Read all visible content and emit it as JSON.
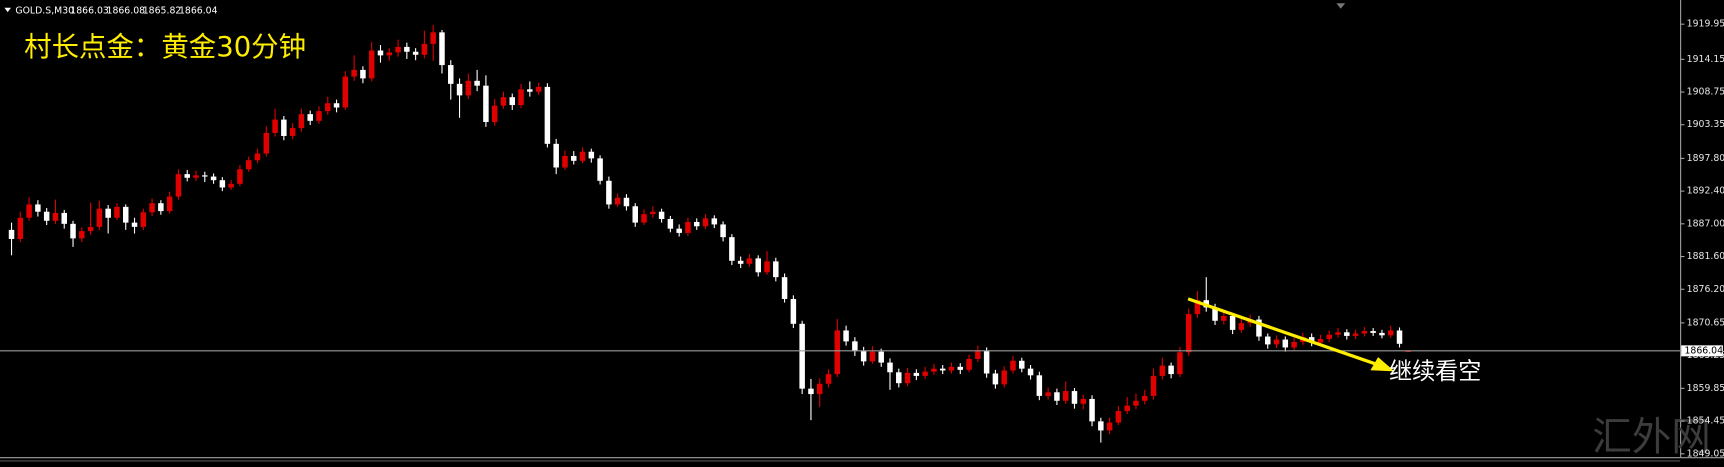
{
  "chart_data": {
    "type": "candlestick",
    "title": "GOLD.S,M30",
    "annotations": [
      "村长点金：黄金30分钟",
      "继续看空"
    ],
    "watermark": "汇外网",
    "colors": {
      "up": "#e00000",
      "down": "#ffffff",
      "background": "#000000",
      "price_line": "#9a9a9a",
      "axis": "#a0a0a0",
      "trend": "#ffee00"
    },
    "grid": false,
    "ylim": [
      1848.5,
      1921.4
    ],
    "yticks": [
      1919.95,
      1914.15,
      1908.75,
      1903.35,
      {
        "value": 1897.8,
        "label": "1897.80"
      },
      {
        "value": 1892.4,
        "label": "1892.40"
      },
      {
        "value": 1887,
        "label": "1887.00"
      },
      {
        "value": 1881.6,
        "label": "1881.60"
      },
      {
        "value": 1876.2,
        "label": "1876.20"
      },
      1870.65,
      1865.25,
      1859.85,
      1854.45,
      1849.05
    ],
    "open": [
      1886.0,
      1884.5,
      1888.0,
      1890.2,
      1889.0,
      1887.5,
      1888.8,
      1887.0,
      1884.6,
      1885.8,
      1886.5,
      1889.5,
      1888.0,
      1889.8,
      1887.2,
      1886.5,
      1888.9,
      1890.4,
      1889.1,
      1891.5,
      1895.2,
      1894.6,
      1895.0,
      1894.8,
      1894.2,
      1893.0,
      1893.6,
      1896.0,
      1897.5,
      1898.6,
      1902.0,
      1904.2,
      1901.5,
      1902.8,
      1905.1,
      1904.0,
      1905.6,
      1906.9,
      1906.2,
      1911.3,
      1912.4,
      1911.0,
      1915.6,
      1914.8,
      1915.3,
      1916.2,
      1915.4,
      1914.9,
      1916.7,
      1918.6,
      1913.2,
      1910.1,
      1908.2,
      1910.6,
      1909.8,
      1903.8,
      1906.5,
      1907.9,
      1906.6,
      1909.2,
      1908.8,
      1909.6,
      1900.2,
      1896.3,
      1898.2,
      1897.4,
      1898.9,
      1897.8,
      1894.1,
      1890.2,
      1891.3,
      1889.9,
      1887.2,
      1888.6,
      1889.0,
      1887.8,
      1886.2,
      1885.5,
      1887.3,
      1886.6,
      1887.9,
      1886.9,
      1884.8,
      1880.9,
      1880.4,
      1881.3,
      1879.0,
      1880.8,
      1878.2,
      1874.6,
      1870.5,
      1859.8,
      1858.9,
      1860.6,
      1862.2,
      1869.4,
      1867.6,
      1866.0,
      1864.3,
      1865.9,
      1864.1,
      1862.5,
      1860.7,
      1862.4,
      1861.9,
      1862.6,
      1863.1,
      1862.8,
      1863.4,
      1862.9,
      1864.7,
      1866.1,
      1862.3,
      1860.5,
      1862.8,
      1864.4,
      1863.1,
      1862.0,
      1858.6,
      1859.2,
      1857.8,
      1859.4,
      1857.3,
      1858.1,
      1854.4,
      1852.9,
      1854.2,
      1856.1,
      1857.0,
      1857.8,
      1858.6,
      1861.9,
      1863.6,
      1862.2,
      1865.8,
      1872.1,
      1874.4,
      1873.2,
      1871.0,
      1871.8,
      1869.5,
      1870.6,
      1871.2,
      1868.4,
      1867.1,
      1867.9,
      1866.6,
      1867.5,
      1868.3,
      1867.4,
      1868.0,
      1868.7,
      1869.1,
      1868.5,
      1868.9,
      1869.3,
      1869.0,
      1868.6,
      1869.4,
      1866.03
    ],
    "high": [
      1887.2,
      1889.0,
      1891.4,
      1890.9,
      1889.6,
      1891.0,
      1889.3,
      1887.5,
      1886.4,
      1890.5,
      1890.8,
      1890.1,
      1890.4,
      1890.2,
      1888.0,
      1889.5,
      1891.2,
      1890.9,
      1892.3,
      1896.0,
      1895.9,
      1895.8,
      1895.6,
      1895.3,
      1894.7,
      1894.2,
      1896.7,
      1898.1,
      1899.4,
      1903.1,
      1906.0,
      1904.8,
      1903.6,
      1906.0,
      1905.7,
      1906.4,
      1908.0,
      1907.5,
      1912.2,
      1914.8,
      1913.0,
      1917.0,
      1916.5,
      1916.0,
      1917.4,
      1916.9,
      1916.0,
      1918.9,
      1919.8,
      1919.0,
      1914.0,
      1911.0,
      1911.8,
      1912.4,
      1911.5,
      1907.6,
      1908.8,
      1908.5,
      1910.1,
      1910.5,
      1910.3,
      1910.2,
      1901.0,
      1899.1,
      1899.0,
      1899.6,
      1899.4,
      1898.3,
      1894.8,
      1892.0,
      1891.9,
      1890.4,
      1889.4,
      1889.9,
      1889.5,
      1888.3,
      1886.9,
      1888.0,
      1887.9,
      1888.6,
      1888.4,
      1887.4,
      1885.3,
      1881.6,
      1882.0,
      1881.8,
      1882.5,
      1881.4,
      1878.8,
      1875.2,
      1871.0,
      1861.4,
      1861.5,
      1863.0,
      1871.3,
      1870.2,
      1868.3,
      1866.7,
      1866.8,
      1866.4,
      1864.8,
      1863.1,
      1863.2,
      1863.0,
      1863.4,
      1863.9,
      1863.7,
      1864.1,
      1864.0,
      1865.4,
      1866.9,
      1866.6,
      1862.9,
      1863.5,
      1865.2,
      1864.9,
      1863.7,
      1862.6,
      1860.0,
      1859.8,
      1861.0,
      1859.9,
      1858.8,
      1858.7,
      1855.0,
      1855.0,
      1856.9,
      1858.4,
      1859.0,
      1859.6,
      1863.1,
      1864.9,
      1864.1,
      1866.7,
      1873.0,
      1875.9,
      1878.2,
      1873.8,
      1872.6,
      1872.3,
      1871.4,
      1872.0,
      1871.8,
      1868.9,
      1868.6,
      1868.4,
      1868.2,
      1869.0,
      1868.9,
      1868.7,
      1869.4,
      1869.8,
      1869.6,
      1869.5,
      1870.0,
      1869.8,
      1869.5,
      1870.2,
      1869.9,
      1866.08
    ],
    "low": [
      1881.8,
      1884.0,
      1887.5,
      1888.2,
      1886.8,
      1887.0,
      1886.2,
      1883.2,
      1884.0,
      1885.2,
      1886.0,
      1885.4,
      1887.6,
      1886.0,
      1885.4,
      1886.0,
      1888.3,
      1888.5,
      1888.7,
      1891.0,
      1894.0,
      1894.1,
      1893.9,
      1893.6,
      1892.4,
      1892.6,
      1893.2,
      1895.6,
      1897.0,
      1898.1,
      1901.4,
      1900.8,
      1901.0,
      1902.2,
      1903.3,
      1903.5,
      1905.0,
      1905.4,
      1905.8,
      1910.6,
      1910.2,
      1910.5,
      1913.6,
      1913.9,
      1914.6,
      1914.2,
      1914.0,
      1914.3,
      1913.9,
      1911.8,
      1907.5,
      1904.5,
      1907.6,
      1908.9,
      1903.0,
      1903.2,
      1906.0,
      1905.8,
      1906.1,
      1908.0,
      1908.3,
      1899.6,
      1895.2,
      1895.9,
      1896.8,
      1897.0,
      1897.1,
      1893.5,
      1889.5,
      1889.8,
      1889.2,
      1886.5,
      1886.8,
      1888.0,
      1887.2,
      1885.6,
      1884.9,
      1885.0,
      1886.0,
      1886.1,
      1886.3,
      1884.1,
      1880.2,
      1879.7,
      1879.9,
      1878.3,
      1878.6,
      1877.5,
      1874.0,
      1869.8,
      1858.9,
      1854.6,
      1856.8,
      1860.0,
      1861.7,
      1866.9,
      1865.2,
      1863.6,
      1863.9,
      1863.4,
      1859.6,
      1860.0,
      1860.2,
      1861.2,
      1861.4,
      1862.1,
      1862.2,
      1862.3,
      1862.2,
      1862.5,
      1864.2,
      1861.6,
      1859.8,
      1860.0,
      1862.3,
      1862.5,
      1861.3,
      1857.9,
      1858.0,
      1857.1,
      1857.3,
      1856.5,
      1856.4,
      1853.6,
      1850.9,
      1852.3,
      1853.8,
      1855.6,
      1856.4,
      1857.2,
      1858.0,
      1861.3,
      1861.5,
      1861.7,
      1865.2,
      1871.5,
      1872.5,
      1870.3,
      1870.4,
      1868.8,
      1869.0,
      1870.0,
      1867.7,
      1866.4,
      1866.5,
      1865.9,
      1866.1,
      1867.0,
      1866.8,
      1866.9,
      1867.5,
      1868.2,
      1867.9,
      1868.0,
      1868.4,
      1868.5,
      1868.1,
      1868.2,
      1866.6,
      1865.82
    ],
    "close": [
      1884.5,
      1888.0,
      1890.2,
      1889.0,
      1887.5,
      1888.8,
      1887.0,
      1884.6,
      1885.8,
      1886.5,
      1889.5,
      1888.0,
      1889.8,
      1887.2,
      1886.5,
      1888.9,
      1890.4,
      1889.1,
      1891.5,
      1895.2,
      1894.6,
      1895.0,
      1894.8,
      1894.2,
      1893.0,
      1893.6,
      1896.0,
      1897.5,
      1898.6,
      1902.0,
      1904.2,
      1901.5,
      1902.8,
      1905.1,
      1904.0,
      1905.6,
      1906.9,
      1906.2,
      1911.3,
      1912.4,
      1911.0,
      1915.6,
      1914.8,
      1915.3,
      1916.2,
      1915.4,
      1914.9,
      1916.7,
      1918.6,
      1913.2,
      1910.1,
      1908.2,
      1910.6,
      1909.8,
      1903.8,
      1906.5,
      1907.9,
      1906.6,
      1909.2,
      1908.8,
      1909.6,
      1900.2,
      1896.3,
      1898.2,
      1897.4,
      1898.9,
      1897.8,
      1894.1,
      1890.2,
      1891.3,
      1889.9,
      1887.2,
      1888.6,
      1889.0,
      1887.8,
      1886.2,
      1885.5,
      1887.3,
      1886.6,
      1887.9,
      1886.9,
      1884.8,
      1880.9,
      1880.4,
      1881.3,
      1879.0,
      1880.8,
      1878.2,
      1874.6,
      1870.5,
      1859.8,
      1858.9,
      1860.6,
      1862.2,
      1869.4,
      1867.6,
      1866.0,
      1864.3,
      1865.9,
      1864.1,
      1862.5,
      1860.7,
      1862.4,
      1861.9,
      1862.6,
      1863.1,
      1862.8,
      1863.4,
      1862.9,
      1864.7,
      1866.1,
      1862.3,
      1860.5,
      1862.8,
      1864.4,
      1863.1,
      1862.0,
      1858.6,
      1859.2,
      1857.8,
      1859.4,
      1857.3,
      1858.1,
      1854.4,
      1852.9,
      1854.2,
      1856.1,
      1857.0,
      1857.8,
      1858.6,
      1861.9,
      1863.6,
      1862.2,
      1865.8,
      1872.1,
      1874.4,
      1873.2,
      1871.0,
      1871.8,
      1869.5,
      1870.6,
      1871.2,
      1868.4,
      1867.1,
      1867.9,
      1866.6,
      1867.5,
      1868.3,
      1867.4,
      1868.0,
      1868.7,
      1869.1,
      1868.5,
      1868.9,
      1869.3,
      1869.0,
      1868.6,
      1869.4,
      1867.2,
      1866.04
    ]
  }
}
